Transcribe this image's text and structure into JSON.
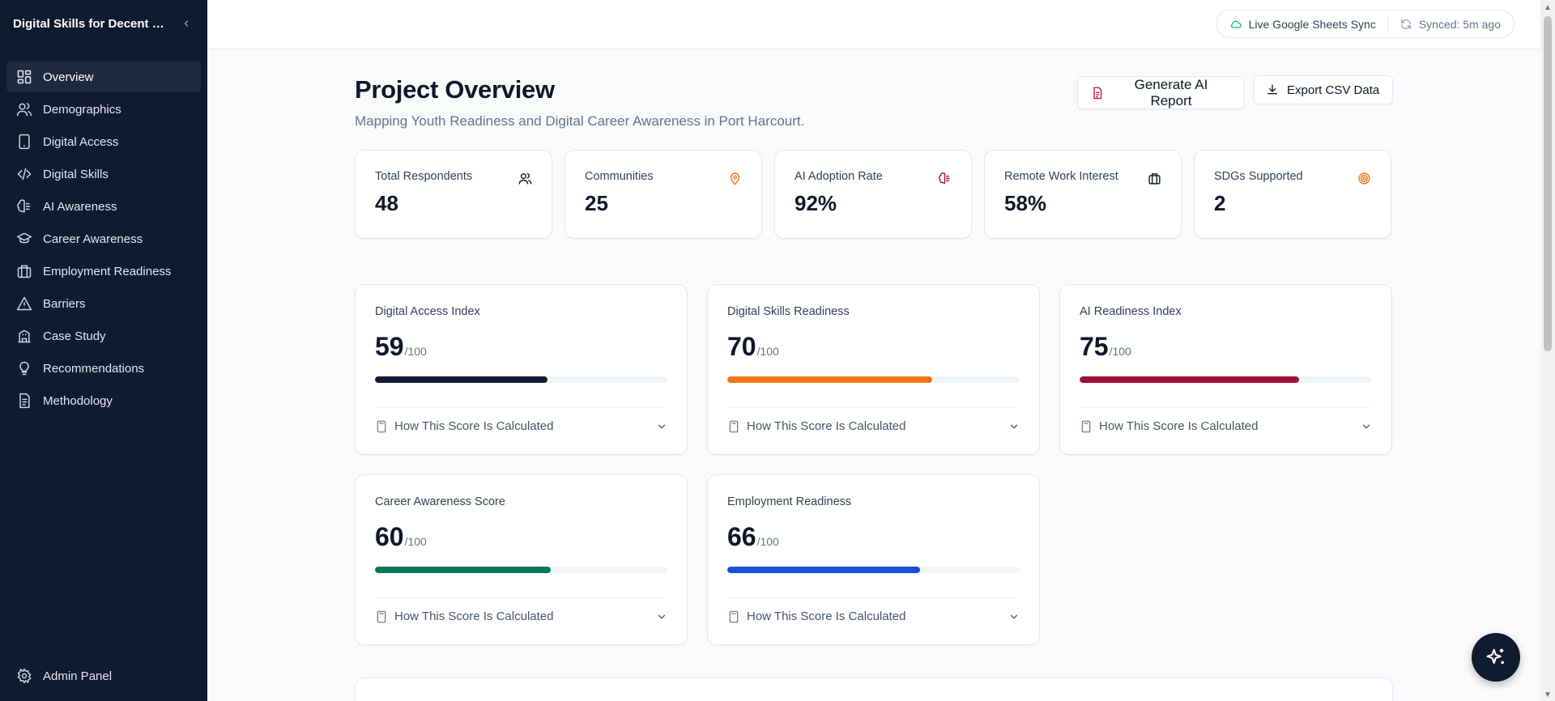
{
  "sidebar": {
    "title": "Digital Skills for Decent Work",
    "items": [
      {
        "label": "Overview",
        "icon": "grid-icon",
        "active": true
      },
      {
        "label": "Demographics",
        "icon": "users-icon"
      },
      {
        "label": "Digital Access",
        "icon": "tablet-icon"
      },
      {
        "label": "Digital Skills",
        "icon": "code-icon"
      },
      {
        "label": "AI Awareness",
        "icon": "brain-icon"
      },
      {
        "label": "Career Awareness",
        "icon": "graduation-cap-icon"
      },
      {
        "label": "Employment Readiness",
        "icon": "briefcase-icon"
      },
      {
        "label": "Barriers",
        "icon": "warning-triangle-icon"
      },
      {
        "label": "Case Study",
        "icon": "building-icon"
      },
      {
        "label": "Recommendations",
        "icon": "lightbulb-icon"
      },
      {
        "label": "Methodology",
        "icon": "document-icon"
      }
    ],
    "footer_label": "Admin Panel"
  },
  "topbar": {
    "sync_label": "Live Google Sheets Sync",
    "synced_label": "Synced: 5m ago"
  },
  "page": {
    "title": "Project Overview",
    "subtitle": "Mapping Youth Readiness and Digital Career Awareness in Port Harcourt.",
    "btn_report": "Generate AI Report",
    "btn_csv": "Export CSV Data"
  },
  "stats": [
    {
      "label": "Total Respondents",
      "value": "48",
      "icon": "users-icon",
      "color": "#0f172a"
    },
    {
      "label": "Communities",
      "value": "25",
      "icon": "map-pin-icon",
      "color": "#f97316"
    },
    {
      "label": "AI Adoption Rate",
      "value": "92%",
      "icon": "brain-icon",
      "color": "#9f1239"
    },
    {
      "label": "Remote Work Interest",
      "value": "58%",
      "icon": "briefcase-icon",
      "color": "#0f172a"
    },
    {
      "label": "SDGs Supported",
      "value": "2",
      "icon": "target-icon",
      "color": "#f97316"
    }
  ],
  "scores": [
    {
      "label": "Digital Access Index",
      "value": "59",
      "max": "/100",
      "pct": 59,
      "color": "#0f1b2e"
    },
    {
      "label": "Digital Skills Readiness",
      "value": "70",
      "max": "/100",
      "pct": 70,
      "color": "#f97316"
    },
    {
      "label": "AI Readiness Index",
      "value": "75",
      "max": "/100",
      "pct": 75,
      "color": "#9f1239"
    },
    {
      "label": "Career Awareness Score",
      "value": "60",
      "max": "/100",
      "pct": 60,
      "color": "#047857"
    },
    {
      "label": "Employment Readiness",
      "value": "66",
      "max": "/100",
      "pct": 66,
      "color": "#1d4ed8"
    }
  ],
  "calc_label": "How This Score Is Calculated"
}
